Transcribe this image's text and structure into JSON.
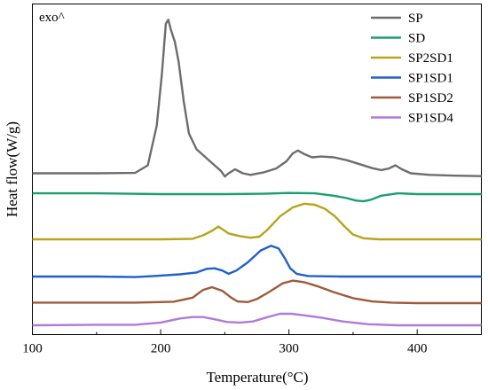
{
  "chart_data": {
    "type": "line",
    "title": "",
    "xlabel": "Temperature(°C)",
    "ylabel": "Heat flow(W/g)",
    "xlim": [
      100,
      450
    ],
    "x_ticks": [
      100,
      200,
      300,
      400
    ],
    "x_tick_labels": [
      "100",
      "200",
      "300",
      "400"
    ],
    "y_ticks_shown": false,
    "annotation": "exo^",
    "legend_position": "top-right",
    "grid": false,
    "series": [
      {
        "name": "SP",
        "color": "#6d6d6d",
        "points": [
          [
            100,
            0.1
          ],
          [
            150,
            0.1
          ],
          [
            180,
            0.11
          ],
          [
            190,
            0.3
          ],
          [
            197,
            1.3
          ],
          [
            201,
            2.6
          ],
          [
            204,
            3.85
          ],
          [
            206,
            3.95
          ],
          [
            208,
            3.7
          ],
          [
            211,
            3.4
          ],
          [
            214,
            2.9
          ],
          [
            218,
            1.9
          ],
          [
            222,
            1.1
          ],
          [
            228,
            0.7
          ],
          [
            235,
            0.5
          ],
          [
            242,
            0.3
          ],
          [
            247,
            0.16
          ],
          [
            250,
            0.02
          ],
          [
            253,
            0.1
          ],
          [
            258,
            0.2
          ],
          [
            264,
            0.1
          ],
          [
            270,
            0.06
          ],
          [
            280,
            0.12
          ],
          [
            290,
            0.22
          ],
          [
            298,
            0.4
          ],
          [
            303,
            0.6
          ],
          [
            307,
            0.67
          ],
          [
            312,
            0.58
          ],
          [
            318,
            0.5
          ],
          [
            325,
            0.52
          ],
          [
            335,
            0.5
          ],
          [
            345,
            0.43
          ],
          [
            355,
            0.33
          ],
          [
            365,
            0.23
          ],
          [
            372,
            0.18
          ],
          [
            378,
            0.22
          ],
          [
            383,
            0.3
          ],
          [
            388,
            0.2
          ],
          [
            395,
            0.1
          ],
          [
            410,
            0.06
          ],
          [
            430,
            0.04
          ],
          [
            450,
            0.03
          ]
        ]
      },
      {
        "name": "SD",
        "color": "#1a9f6e",
        "points": [
          [
            100,
            0.02
          ],
          [
            150,
            0.02
          ],
          [
            200,
            0.0
          ],
          [
            250,
            0.0
          ],
          [
            280,
            0.01
          ],
          [
            300,
            0.03
          ],
          [
            320,
            0.02
          ],
          [
            335,
            -0.04
          ],
          [
            345,
            -0.1
          ],
          [
            352,
            -0.16
          ],
          [
            358,
            -0.18
          ],
          [
            364,
            -0.14
          ],
          [
            372,
            -0.04
          ],
          [
            385,
            0.02
          ],
          [
            400,
            0.0
          ],
          [
            450,
            0.0
          ]
        ]
      },
      {
        "name": "SP2SD1",
        "color": "#b8a31e",
        "points": [
          [
            100,
            0.0
          ],
          [
            150,
            0.0
          ],
          [
            200,
            0.0
          ],
          [
            225,
            0.02
          ],
          [
            233,
            0.15
          ],
          [
            240,
            0.32
          ],
          [
            245,
            0.48
          ],
          [
            249,
            0.35
          ],
          [
            253,
            0.22
          ],
          [
            262,
            0.12
          ],
          [
            270,
            0.06
          ],
          [
            277,
            0.1
          ],
          [
            283,
            0.35
          ],
          [
            293,
            0.86
          ],
          [
            303,
            1.2
          ],
          [
            312,
            1.34
          ],
          [
            320,
            1.3
          ],
          [
            328,
            1.15
          ],
          [
            336,
            0.86
          ],
          [
            343,
            0.5
          ],
          [
            350,
            0.18
          ],
          [
            358,
            0.04
          ],
          [
            370,
            0.0
          ],
          [
            400,
            0.0
          ],
          [
            450,
            0.0
          ]
        ]
      },
      {
        "name": "SP1SD1",
        "color": "#2060c8",
        "points": [
          [
            100,
            0.0
          ],
          [
            150,
            0.0
          ],
          [
            180,
            -0.02
          ],
          [
            195,
            0.02
          ],
          [
            215,
            0.08
          ],
          [
            228,
            0.15
          ],
          [
            236,
            0.28
          ],
          [
            242,
            0.3
          ],
          [
            248,
            0.22
          ],
          [
            253,
            0.1
          ],
          [
            259,
            0.22
          ],
          [
            268,
            0.52
          ],
          [
            278,
            0.95
          ],
          [
            286,
            1.12
          ],
          [
            292,
            1.02
          ],
          [
            297,
            0.65
          ],
          [
            301,
            0.3
          ],
          [
            306,
            0.1
          ],
          [
            315,
            0.02
          ],
          [
            340,
            0.0
          ],
          [
            400,
            0.0
          ],
          [
            450,
            0.0
          ]
        ]
      },
      {
        "name": "SP1SD2",
        "color": "#9e5a3a",
        "points": [
          [
            100,
            0.02
          ],
          [
            180,
            0.02
          ],
          [
            210,
            0.05
          ],
          [
            225,
            0.2
          ],
          [
            233,
            0.48
          ],
          [
            240,
            0.58
          ],
          [
            248,
            0.45
          ],
          [
            255,
            0.2
          ],
          [
            260,
            0.06
          ],
          [
            268,
            0.04
          ],
          [
            275,
            0.15
          ],
          [
            285,
            0.42
          ],
          [
            295,
            0.72
          ],
          [
            303,
            0.82
          ],
          [
            312,
            0.76
          ],
          [
            322,
            0.62
          ],
          [
            335,
            0.4
          ],
          [
            350,
            0.18
          ],
          [
            365,
            0.06
          ],
          [
            380,
            0.02
          ],
          [
            400,
            0.0
          ],
          [
            450,
            0.0
          ]
        ]
      },
      {
        "name": "SP1SD4",
        "color": "#b07ad8",
        "points": [
          [
            100,
            0.0
          ],
          [
            150,
            0.02
          ],
          [
            180,
            0.02
          ],
          [
            200,
            0.1
          ],
          [
            215,
            0.25
          ],
          [
            225,
            0.3
          ],
          [
            233,
            0.3
          ],
          [
            242,
            0.22
          ],
          [
            252,
            0.12
          ],
          [
            262,
            0.1
          ],
          [
            272,
            0.14
          ],
          [
            282,
            0.28
          ],
          [
            293,
            0.42
          ],
          [
            302,
            0.42
          ],
          [
            312,
            0.36
          ],
          [
            325,
            0.28
          ],
          [
            342,
            0.14
          ],
          [
            362,
            0.04
          ],
          [
            385,
            0.0
          ],
          [
            420,
            0.0
          ],
          [
            450,
            0.0
          ]
        ]
      }
    ]
  }
}
